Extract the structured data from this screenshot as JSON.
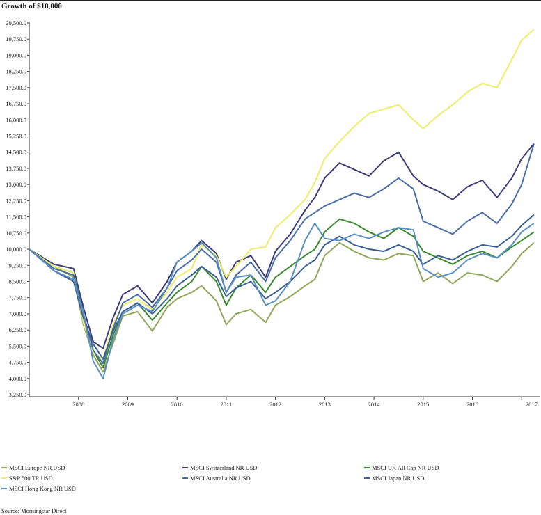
{
  "chart_data": {
    "type": "line",
    "title": "Growth of $10,000",
    "xlabel": "",
    "ylabel": "",
    "ylim": [
      3250,
      20500
    ],
    "yticks": [
      "20,500.0",
      "19,750.0",
      "19,000.0",
      "18,250.0",
      "17,500.0",
      "16,750.0",
      "16,000.0",
      "15,250.0",
      "14,500.0",
      "13,750.0",
      "13,000.0",
      "12,250.0",
      "11,500.0",
      "10,750.0",
      "10,000.0",
      "9,250.0",
      "8,500.0",
      "7,750.0",
      "7,000.0",
      "6,250.0",
      "5,500.0",
      "4,750.0",
      "4,000.0",
      "3,250.0"
    ],
    "xticks": [
      "2008",
      "2009",
      "2010",
      "2011",
      "2012",
      "2013",
      "2014",
      "2015",
      "2016",
      "2017"
    ],
    "x": [
      2007.0,
      2007.5,
      2007.9,
      2008.1,
      2008.3,
      2008.5,
      2008.7,
      2008.9,
      2009.2,
      2009.5,
      2009.8,
      2010.0,
      2010.3,
      2010.5,
      2010.8,
      2011.0,
      2011.2,
      2011.5,
      2011.8,
      2012.0,
      2012.3,
      2012.6,
      2012.8,
      2013.0,
      2013.3,
      2013.6,
      2013.9,
      2014.2,
      2014.5,
      2014.8,
      2015.0,
      2015.3,
      2015.6,
      2015.9,
      2016.2,
      2016.5,
      2016.8,
      2017.0,
      2017.25
    ],
    "series": [
      {
        "name": "MSCI Europe NR USD",
        "color": "#8fa85a",
        "values": [
          10000,
          9200,
          8700,
          6500,
          5100,
          4300,
          5600,
          6900,
          7100,
          6200,
          7300,
          7700,
          8000,
          8300,
          7600,
          6500,
          7000,
          7200,
          6600,
          7400,
          7800,
          8300,
          8600,
          9700,
          10300,
          9900,
          9600,
          9500,
          9800,
          9700,
          8500,
          8900,
          8400,
          8900,
          8800,
          8500,
          9200,
          9800,
          10300
        ]
      },
      {
        "name": "MSCI Switzerland NR USD",
        "color": "#3d3d7a",
        "values": [
          10000,
          9300,
          9100,
          7300,
          5700,
          5400,
          6800,
          7900,
          8300,
          7500,
          8500,
          9400,
          9900,
          10400,
          9800,
          8600,
          9400,
          9700,
          8700,
          9900,
          10700,
          11800,
          12400,
          13300,
          14000,
          13700,
          13400,
          14100,
          14500,
          13400,
          13000,
          12700,
          12300,
          12900,
          13200,
          12400,
          13300,
          14200,
          14900
        ]
      },
      {
        "name": "MSCI UK All Cap NR USD",
        "color": "#3a8a2e",
        "values": [
          10000,
          9200,
          8900,
          7000,
          5300,
          4500,
          6000,
          7100,
          7500,
          6700,
          7500,
          8000,
          8500,
          9200,
          8500,
          7400,
          8200,
          8800,
          8000,
          8700,
          9200,
          9700,
          10000,
          10800,
          11400,
          11200,
          10800,
          10500,
          11000,
          10600,
          9900,
          9600,
          9300,
          9700,
          9900,
          9600,
          10100,
          10400,
          10800
        ]
      },
      {
        "name": "S&P 500 TR USD",
        "color": "#eded6a",
        "values": [
          10000,
          9200,
          8900,
          6600,
          5200,
          4900,
          6500,
          7400,
          7700,
          7200,
          8000,
          8700,
          9100,
          10200,
          9700,
          8700,
          9200,
          10000,
          10100,
          11000,
          11600,
          12300,
          13100,
          14200,
          15000,
          15700,
          16300,
          16500,
          16700,
          16000,
          15600,
          16200,
          16700,
          17300,
          17700,
          17500,
          18800,
          19700,
          20200
        ]
      },
      {
        "name": "MSCI Australia NR USD",
        "color": "#4a6ea8",
        "values": [
          10000,
          9100,
          8800,
          7000,
          5300,
          4700,
          6300,
          7500,
          7900,
          7300,
          8200,
          9000,
          9500,
          10000,
          9400,
          8000,
          8800,
          9400,
          8500,
          9600,
          10400,
          11400,
          11700,
          12000,
          12300,
          12600,
          12400,
          12800,
          13300,
          12800,
          11300,
          11000,
          10700,
          11300,
          11700,
          11200,
          12100,
          13000,
          14900
        ]
      },
      {
        "name": "MSCI Japan NR USD",
        "color": "#3a5f94",
        "values": [
          10000,
          9000,
          8500,
          6800,
          5600,
          4900,
          6200,
          7100,
          7500,
          7000,
          7700,
          8300,
          8800,
          9200,
          8700,
          7800,
          8200,
          8500,
          7700,
          8000,
          8500,
          9200,
          9500,
          10200,
          10600,
          10200,
          10000,
          9900,
          10200,
          9900,
          9300,
          9700,
          9500,
          9900,
          10200,
          10100,
          10600,
          11100,
          11600
        ]
      },
      {
        "name": "MSCI Hong Kong NR USD",
        "color": "#5a8fc4",
        "values": [
          10000,
          9000,
          8600,
          7000,
          4800,
          4000,
          5800,
          7000,
          7400,
          7100,
          8200,
          9400,
          9900,
          10300,
          9600,
          8000,
          8700,
          8800,
          7400,
          7600,
          8500,
          10400,
          11200,
          10500,
          10400,
          10700,
          10500,
          10800,
          11000,
          10900,
          9100,
          8700,
          8900,
          9500,
          9800,
          9600,
          10200,
          10800,
          11200
        ]
      }
    ]
  },
  "legend": {
    "europe": "MSCI Europe NR USD",
    "switzerland": "MSCI Switzerland NR USD",
    "uk": "MSCI UK All Cap NR USD",
    "sp500": "S&P 500 TR USD",
    "australia": "MSCI Australia NR USD",
    "japan": "MSCI Japan NR USD",
    "hongkong": "MSCI Hong Kong NR USD"
  },
  "source": "Source: Morningstar Direct"
}
